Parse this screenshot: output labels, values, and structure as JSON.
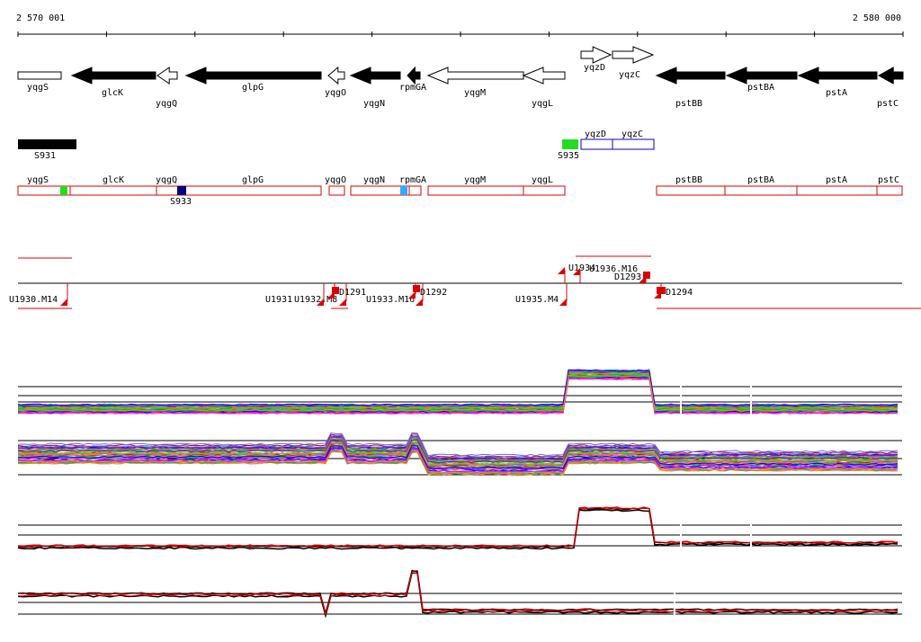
{
  "ruler": {
    "start": "2 570 001",
    "end": "2 580 000"
  },
  "genes": [
    "yqgS",
    "glcK",
    "yqgQ",
    "glpG",
    "yqgO",
    "yqgN",
    "rpmGA",
    "yqgM",
    "yqgL",
    "yqzD",
    "yqzC",
    "pstBB",
    "pstBA",
    "pstA",
    "pstC"
  ],
  "segments": [
    "S931",
    "S935",
    "yqzD",
    "yqzC"
  ],
  "operons": [
    "yqgS",
    "glcK",
    "yqgQ",
    "glpG",
    "yqgO",
    "yqgN",
    "rpmGA",
    "yqgM",
    "yqgL",
    "pstBB",
    "pstBA",
    "pstA",
    "pstC",
    "S933"
  ],
  "probes": [
    "U1930.M14",
    "U1931",
    "U1932.M8",
    "D1291",
    "U1933.M16",
    "D1292",
    "U1935.M4",
    "U1934",
    "U1936.M16",
    "D1293",
    "D1294"
  ]
}
